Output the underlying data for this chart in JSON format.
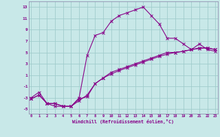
{
  "xlabel": "Windchill (Refroidissement éolien,°C)",
  "bg_color": "#c8e8e8",
  "grid_color": "#a0cccc",
  "line_color": "#880088",
  "spine_color": "#9090b0",
  "xlim": [
    -0.3,
    23.3
  ],
  "ylim": [
    -5.8,
    14.0
  ],
  "xticks": [
    0,
    1,
    2,
    3,
    4,
    5,
    6,
    7,
    8,
    9,
    10,
    11,
    12,
    13,
    14,
    15,
    16,
    17,
    18,
    19,
    20,
    21,
    22,
    23
  ],
  "yticks": [
    -5,
    -3,
    -1,
    1,
    3,
    5,
    7,
    9,
    11,
    13
  ],
  "line1_x": [
    0,
    1,
    2,
    3,
    4,
    5,
    6,
    7,
    8,
    9,
    10,
    11,
    12,
    13,
    14,
    15,
    16,
    17,
    18,
    19,
    20,
    21,
    22,
    23
  ],
  "line1_y": [
    -3.0,
    -2.0,
    -4.0,
    -4.5,
    -4.5,
    -4.5,
    -3.0,
    4.5,
    8.0,
    8.5,
    10.5,
    11.5,
    12.0,
    12.5,
    13.0,
    11.5,
    10.0,
    7.5,
    7.5,
    6.5,
    5.5,
    6.5,
    5.5,
    5.2
  ],
  "line2_x": [
    0,
    1,
    2,
    3,
    4,
    5,
    6,
    7,
    8,
    9,
    10,
    11,
    12,
    13,
    14,
    15,
    16,
    17,
    18,
    19,
    20,
    21,
    22,
    23
  ],
  "line2_y": [
    -3.2,
    -2.5,
    -4.0,
    -4.0,
    -4.5,
    -4.5,
    -3.5,
    -2.5,
    -0.5,
    0.5,
    1.5,
    2.0,
    2.5,
    3.0,
    3.5,
    4.0,
    4.5,
    5.0,
    5.0,
    5.2,
    5.5,
    5.8,
    5.8,
    5.5
  ],
  "line3_x": [
    0,
    1,
    2,
    3,
    4,
    5,
    6,
    7,
    8,
    9,
    10,
    11,
    12,
    13,
    14,
    15,
    16,
    17,
    18,
    19,
    20,
    21,
    22,
    23
  ],
  "line3_y": [
    -3.2,
    -2.5,
    -4.0,
    -4.0,
    -4.5,
    -4.5,
    -3.2,
    -2.8,
    -0.5,
    0.5,
    1.2,
    1.8,
    2.3,
    2.8,
    3.3,
    3.8,
    4.3,
    4.7,
    5.0,
    5.2,
    5.5,
    5.7,
    5.8,
    5.5
  ]
}
